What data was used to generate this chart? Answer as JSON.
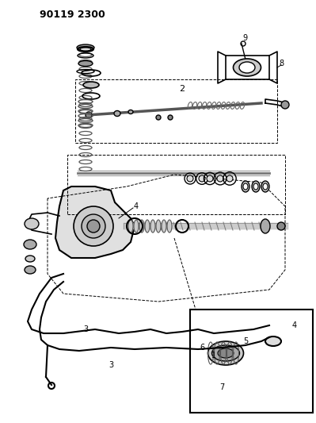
{
  "title": "90119 2300",
  "bg_color": "#ffffff",
  "line_color": "#000000",
  "title_fontsize": 11,
  "fig_width": 3.99,
  "fig_height": 5.33,
  "dpi": 100
}
